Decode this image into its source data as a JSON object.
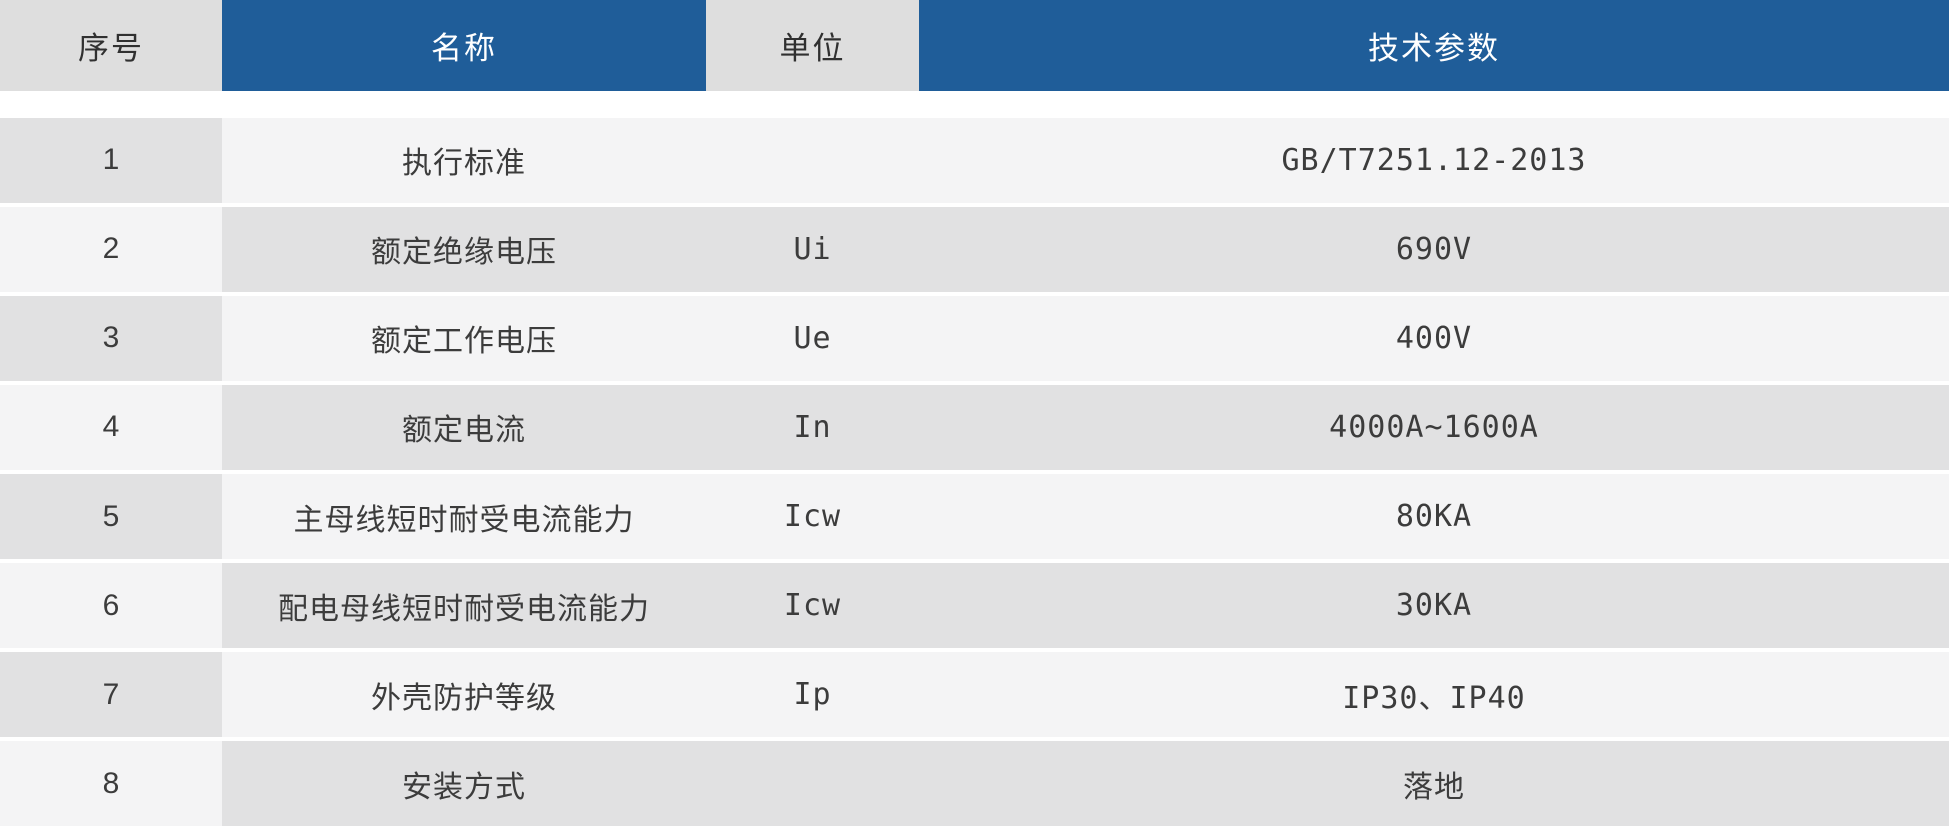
{
  "table": {
    "title_semantic": "技术参数表",
    "columns": [
      {
        "label": "序号",
        "style": "gray"
      },
      {
        "label": "名称",
        "style": "blue"
      },
      {
        "label": "单位",
        "style": "gray"
      },
      {
        "label": "技术参数",
        "style": "blue"
      }
    ],
    "rows": [
      {
        "no": "1",
        "name": "执行标准",
        "unit": "",
        "value": "GB/T7251.12-2013"
      },
      {
        "no": "2",
        "name": "额定绝缘电压",
        "unit": "Ui",
        "value": "690V"
      },
      {
        "no": "3",
        "name": "额定工作电压",
        "unit": "Ue",
        "value": "400V"
      },
      {
        "no": "4",
        "name": "额定电流",
        "unit": "In",
        "value": "4000A~1600A"
      },
      {
        "no": "5",
        "name": "主母线短时耐受电流能力",
        "unit": "Icw",
        "value": "80KA"
      },
      {
        "no": "6",
        "name": "配电母线短时耐受电流能力",
        "unit": "Icw",
        "value": "30KA"
      },
      {
        "no": "7",
        "name": "外壳防护等级",
        "unit": "Ip",
        "value": "IP30、IP40"
      },
      {
        "no": "8",
        "name": "安装方式",
        "unit": "",
        "value": "落地"
      }
    ],
    "colors": {
      "header_blue": "#1F5D99",
      "header_gray": "#DEDEDE",
      "row_dark": "#E1E1E2",
      "row_light": "#F4F4F5",
      "text_dark": "#3C3C3C",
      "text_on_blue": "#FFFFFF"
    }
  }
}
